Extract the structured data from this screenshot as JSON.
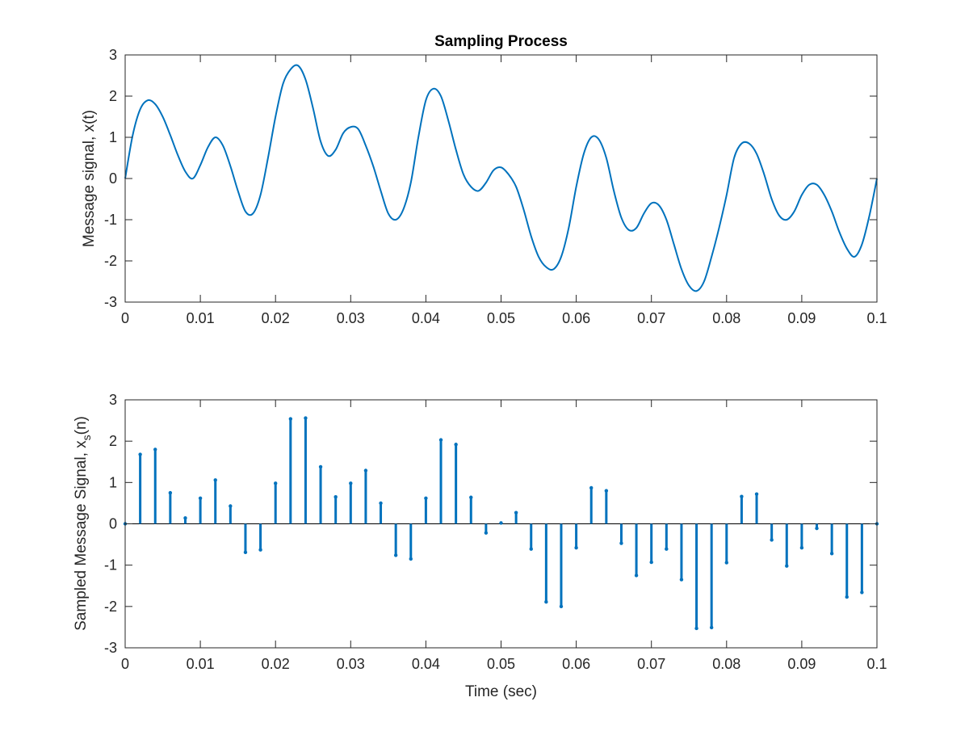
{
  "chart_data": [
    {
      "type": "line",
      "title": "Sampling Process",
      "xlabel": "",
      "ylabel": "Message signal, x(t)",
      "xlim": [
        0,
        0.1
      ],
      "ylim": [
        -3,
        3
      ],
      "xticks": [
        0,
        0.01,
        0.02,
        0.03,
        0.04,
        0.05,
        0.06,
        0.07,
        0.08,
        0.09,
        0.1
      ],
      "xtick_labels": [
        "0",
        "0.01",
        "0.02",
        "0.03",
        "0.04",
        "0.05",
        "0.06",
        "0.07",
        "0.08",
        "0.09",
        "0.1"
      ],
      "yticks": [
        -3,
        -2,
        -1,
        0,
        1,
        2,
        3
      ],
      "ytick_labels": [
        "-3",
        "-2",
        "-1",
        "0",
        "1",
        "2",
        "3"
      ],
      "grid": false,
      "series": [
        {
          "color": "#0072BD",
          "x": [
            0,
            0.001,
            0.002,
            0.003,
            0.004,
            0.005,
            0.006,
            0.007,
            0.008,
            0.009,
            0.01,
            0.011,
            0.012,
            0.013,
            0.014,
            0.015,
            0.016,
            0.017,
            0.018,
            0.019,
            0.02,
            0.021,
            0.022,
            0.023,
            0.024,
            0.025,
            0.026,
            0.027,
            0.028,
            0.029,
            0.03,
            0.031,
            0.032,
            0.033,
            0.034,
            0.035,
            0.036,
            0.037,
            0.038,
            0.039,
            0.04,
            0.041,
            0.042,
            0.043,
            0.044,
            0.045,
            0.046,
            0.047,
            0.048,
            0.049,
            0.05,
            0.051,
            0.052,
            0.053,
            0.054,
            0.055,
            0.056,
            0.057,
            0.058,
            0.059,
            0.06,
            0.061,
            0.062,
            0.063,
            0.064,
            0.065,
            0.066,
            0.067,
            0.068,
            0.069,
            0.07,
            0.071,
            0.072,
            0.073,
            0.074,
            0.075,
            0.076,
            0.077,
            0.078,
            0.079,
            0.08,
            0.081,
            0.082,
            0.083,
            0.084,
            0.085,
            0.086,
            0.087,
            0.088,
            0.089,
            0.09,
            0.091,
            0.092,
            0.093,
            0.094,
            0.095,
            0.096,
            0.097,
            0.098,
            0.099,
            0.1
          ],
          "values": [
            0.0,
            1.0489,
            1.6808,
            1.8992,
            1.8057,
            1.4979,
            1.0536,
            0.5706,
            0.1695,
            0.0,
            0.3249,
            0.756,
            1.0,
            0.8,
            0.3,
            -0.3,
            -0.8,
            -0.85,
            -0.4,
            0.5,
            1.5,
            2.3,
            2.65,
            2.74,
            2.4,
            1.7,
            0.9,
            0.55,
            0.7,
            1.1,
            1.25,
            1.2,
            0.8,
            0.3,
            -0.3,
            -0.85,
            -1.0,
            -0.75,
            -0.1,
            1.0,
            1.9,
            2.18,
            2.0,
            1.4,
            0.7,
            0.1,
            -0.2,
            -0.3,
            -0.1,
            0.2,
            0.27,
            0.1,
            -0.2,
            -0.75,
            -1.4,
            -1.9,
            -2.15,
            -2.2,
            -1.9,
            -1.2,
            -0.2,
            0.6,
            1.0,
            0.95,
            0.5,
            -0.3,
            -0.95,
            -1.25,
            -1.2,
            -0.85,
            -0.6,
            -0.65,
            -1.0,
            -1.6,
            -2.2,
            -2.6,
            -2.73,
            -2.5,
            -1.9,
            -1.2,
            -0.4,
            0.5,
            0.85,
            0.85,
            0.6,
            0.1,
            -0.5,
            -0.9,
            -1.0,
            -0.8,
            -0.4,
            -0.15,
            -0.15,
            -0.4,
            -0.8,
            -1.3,
            -1.7,
            -1.9,
            -1.6,
            -0.9,
            0.0
          ]
        }
      ]
    },
    {
      "type": "stem",
      "title": "",
      "xlabel": "Time (sec)",
      "ylabel_main": "Sampled Message Signal, x",
      "ylabel_sub": "s",
      "ylabel_suffix": "(n)",
      "xlim": [
        0,
        0.1
      ],
      "ylim": [
        -3,
        3
      ],
      "xticks": [
        0,
        0.01,
        0.02,
        0.03,
        0.04,
        0.05,
        0.06,
        0.07,
        0.08,
        0.09,
        0.1
      ],
      "xtick_labels": [
        "0",
        "0.01",
        "0.02",
        "0.03",
        "0.04",
        "0.05",
        "0.06",
        "0.07",
        "0.08",
        "0.09",
        "0.1"
      ],
      "yticks": [
        -3,
        -2,
        -1,
        0,
        1,
        2,
        3
      ],
      "ytick_labels": [
        "-3",
        "-2",
        "-1",
        "0",
        "1",
        "2",
        "3"
      ],
      "grid": false,
      "series": [
        {
          "color": "#0072BD",
          "x": [
            0,
            0.002,
            0.004,
            0.006,
            0.008,
            0.01,
            0.012,
            0.014,
            0.016,
            0.018,
            0.02,
            0.022,
            0.024,
            0.026,
            0.028,
            0.03,
            0.032,
            0.034,
            0.036,
            0.038,
            0.04,
            0.042,
            0.044,
            0.046,
            0.048,
            0.05,
            0.052,
            0.054,
            0.056,
            0.058,
            0.06,
            0.062,
            0.064,
            0.066,
            0.068,
            0.07,
            0.072,
            0.074,
            0.076,
            0.078,
            0.08,
            0.082,
            0.084,
            0.086,
            0.088,
            0.09,
            0.092,
            0.094,
            0.096,
            0.098,
            0.1
          ],
          "values": [
            0.0,
            1.68,
            1.8,
            0.75,
            0.14,
            0.62,
            1.06,
            0.43,
            -0.69,
            -0.63,
            0.98,
            2.54,
            2.56,
            1.38,
            0.65,
            0.98,
            1.29,
            0.5,
            -0.76,
            -0.85,
            0.62,
            2.03,
            1.92,
            0.64,
            -0.22,
            0.02,
            0.27,
            -0.61,
            -1.89,
            -2.0,
            -0.58,
            0.87,
            0.8,
            -0.47,
            -1.25,
            -0.93,
            -0.61,
            -1.35,
            -2.53,
            -2.51,
            -0.94,
            0.66,
            0.72,
            -0.39,
            -1.02,
            -0.58,
            -0.11,
            -0.72,
            -1.77,
            -1.66,
            0.0
          ]
        }
      ]
    }
  ]
}
